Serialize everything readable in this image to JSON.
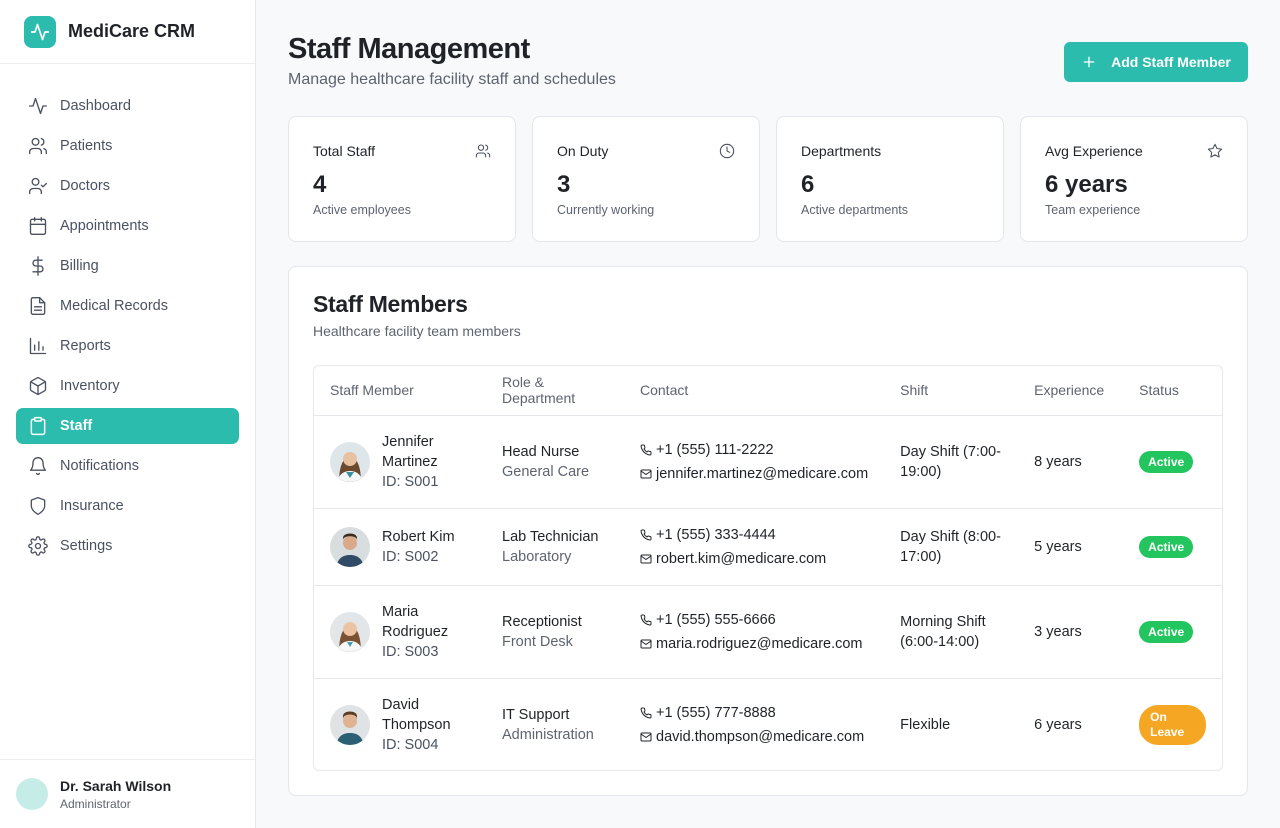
{
  "app": {
    "name": "MediCare CRM",
    "brand_color": "#2bbcad"
  },
  "sidebar": {
    "items": [
      {
        "label": "Dashboard",
        "icon": "activity-icon"
      },
      {
        "label": "Patients",
        "icon": "users-icon"
      },
      {
        "label": "Doctors",
        "icon": "user-check-icon"
      },
      {
        "label": "Appointments",
        "icon": "calendar-icon"
      },
      {
        "label": "Billing",
        "icon": "dollar-icon"
      },
      {
        "label": "Medical Records",
        "icon": "file-text-icon"
      },
      {
        "label": "Reports",
        "icon": "bar-chart-icon"
      },
      {
        "label": "Inventory",
        "icon": "package-icon"
      },
      {
        "label": "Staff",
        "icon": "clipboard-icon",
        "active": true
      },
      {
        "label": "Notifications",
        "icon": "bell-icon"
      },
      {
        "label": "Insurance",
        "icon": "shield-icon"
      },
      {
        "label": "Settings",
        "icon": "gear-icon"
      }
    ],
    "user": {
      "name": "Dr. Sarah Wilson",
      "role": "Administrator"
    }
  },
  "header": {
    "title": "Staff Management",
    "subtitle": "Manage healthcare facility staff and schedules",
    "add_button": "Add Staff Member"
  },
  "stats": [
    {
      "label": "Total Staff",
      "value": "4",
      "note": "Active employees",
      "icon": "users-icon"
    },
    {
      "label": "On Duty",
      "value": "3",
      "note": "Currently working",
      "icon": "clock-icon"
    },
    {
      "label": "Departments",
      "value": "6",
      "note": "Active departments",
      "icon": ""
    },
    {
      "label": "Avg Experience",
      "value": "6 years",
      "note": "Team experience",
      "icon": "star-icon"
    }
  ],
  "staff_panel": {
    "title": "Staff Members",
    "subtitle": "Healthcare facility team members",
    "columns": [
      "Staff Member",
      "Role & Department",
      "Contact",
      "Shift",
      "Experience",
      "Status"
    ],
    "rows": [
      {
        "name": "Jennifer Martinez",
        "id": "ID: S001",
        "role": "Head Nurse",
        "department": "General Care",
        "phone": "+1 (555) 111-2222",
        "email": "jennifer.martinez@medicare.com",
        "shift": "Day Shift (7:00-19:00)",
        "experience": "8 years",
        "status": "Active"
      },
      {
        "name": "Robert Kim",
        "id": "ID: S002",
        "role": "Lab Technician",
        "department": "Laboratory",
        "phone": "+1 (555) 333-4444",
        "email": "robert.kim@medicare.com",
        "shift": "Day Shift (8:00-17:00)",
        "experience": "5 years",
        "status": "Active"
      },
      {
        "name": "Maria Rodriguez",
        "id": "ID: S003",
        "role": "Receptionist",
        "department": "Front Desk",
        "phone": "+1 (555) 555-6666",
        "email": "maria.rodriguez@medicare.com",
        "shift": "Morning Shift (6:00-14:00)",
        "experience": "3 years",
        "status": "Active"
      },
      {
        "name": "David Thompson",
        "id": "ID: S004",
        "role": "IT Support",
        "department": "Administration",
        "phone": "+1 (555) 777-8888",
        "email": "david.thompson@medicare.com",
        "shift": "Flexible",
        "experience": "6 years",
        "status": "On Leave"
      }
    ]
  },
  "colors": {
    "active": "#22c55e",
    "on_leave": "#f5a623"
  }
}
